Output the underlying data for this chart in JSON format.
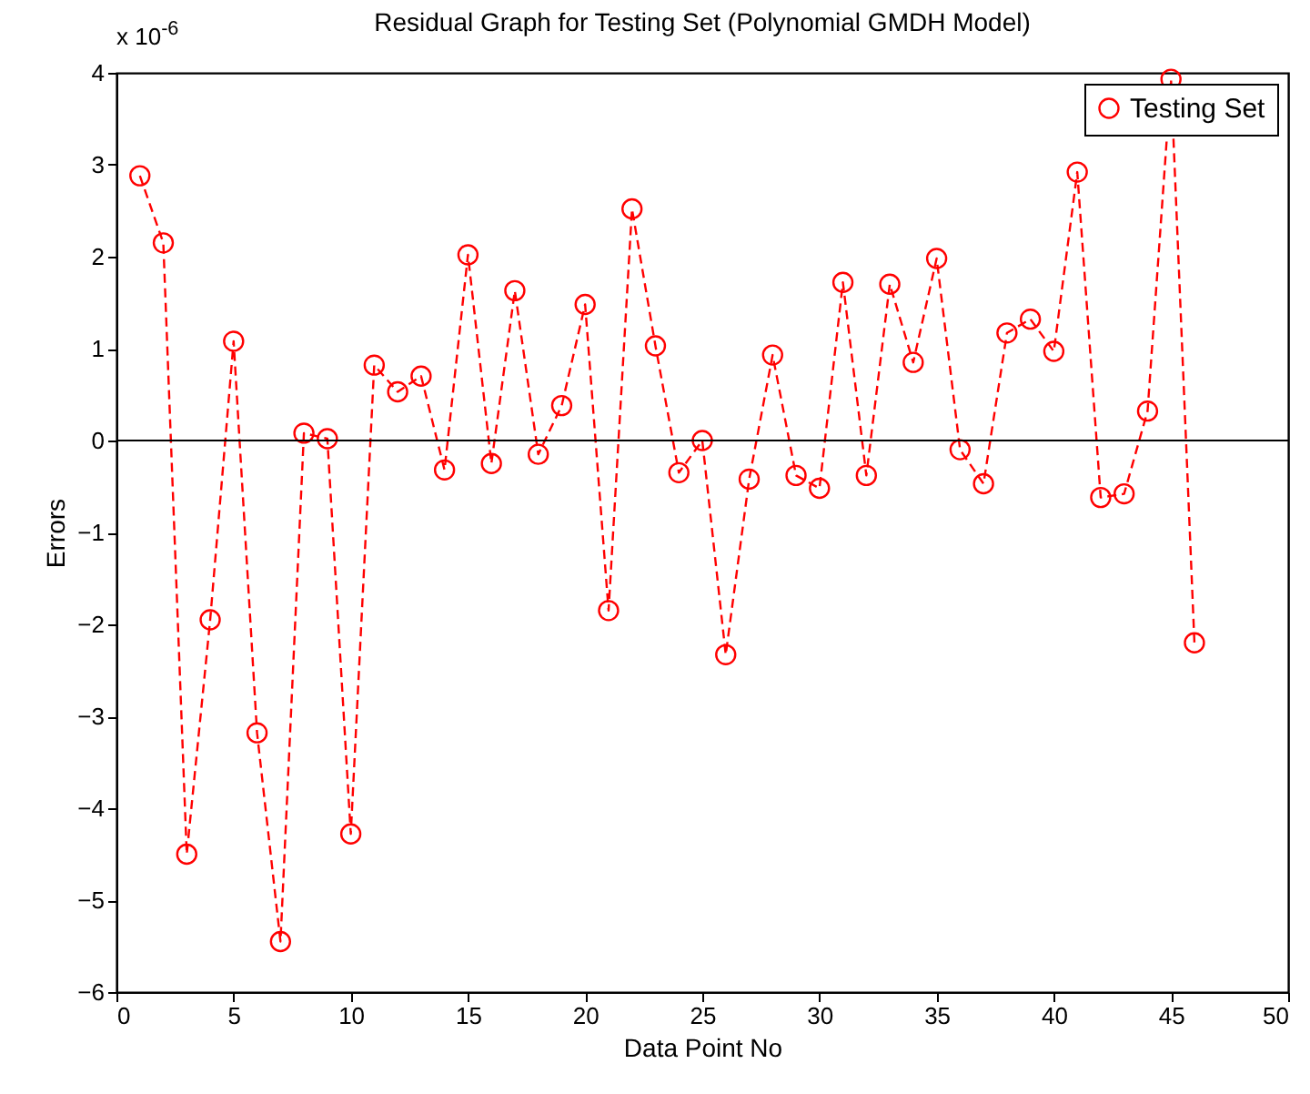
{
  "chart_data": {
    "type": "line",
    "title": "Residual Graph for Testing Set (Polynomial GMDH Model)",
    "xlabel": "Data Point No",
    "ylabel": "Errors",
    "annotations": [
      "x 10$^{-6}$"
    ],
    "x": [
      1,
      2,
      3,
      4,
      5,
      6,
      7,
      8,
      9,
      10,
      11,
      12,
      13,
      14,
      15,
      16,
      17,
      18,
      19,
      20,
      21,
      22,
      23,
      24,
      25,
      26,
      27,
      28,
      29,
      30,
      31,
      32,
      33,
      34,
      35,
      36,
      37,
      38,
      39,
      40,
      41,
      42,
      43,
      44,
      45,
      46
    ],
    "series": [
      {
        "name": "Testing Set",
        "color": "#ff0000",
        "values": [
          2.88,
          2.15,
          -4.5,
          -1.95,
          1.08,
          -3.18,
          -5.45,
          0.08,
          0.02,
          -4.28,
          0.82,
          0.53,
          0.7,
          -0.32,
          2.02,
          -0.25,
          1.63,
          -0.15,
          0.38,
          1.48,
          -1.85,
          2.52,
          1.03,
          -0.35,
          0.0,
          -2.33,
          -0.42,
          0.93,
          -0.38,
          -0.52,
          1.72,
          -0.38,
          1.7,
          0.85,
          1.98,
          -0.1,
          -0.47,
          1.17,
          1.32,
          0.97,
          2.92,
          -0.62,
          -0.58,
          0.32,
          3.93,
          -2.2
        ]
      }
    ],
    "xlim": [
      0,
      50
    ],
    "xticks": [
      0,
      5,
      10,
      15,
      20,
      25,
      30,
      35,
      40,
      45,
      50
    ],
    "ylim": [
      -6,
      4
    ],
    "yticks": [
      -6,
      -5,
      -4,
      -3,
      -2,
      -1,
      0,
      1,
      2,
      3,
      4
    ],
    "ref_lines": [
      {
        "axis": "y",
        "value": 0,
        "color": "#000000"
      }
    ],
    "legend": "top right",
    "marker": "circle",
    "line_style": "dashed",
    "grid": false
  }
}
